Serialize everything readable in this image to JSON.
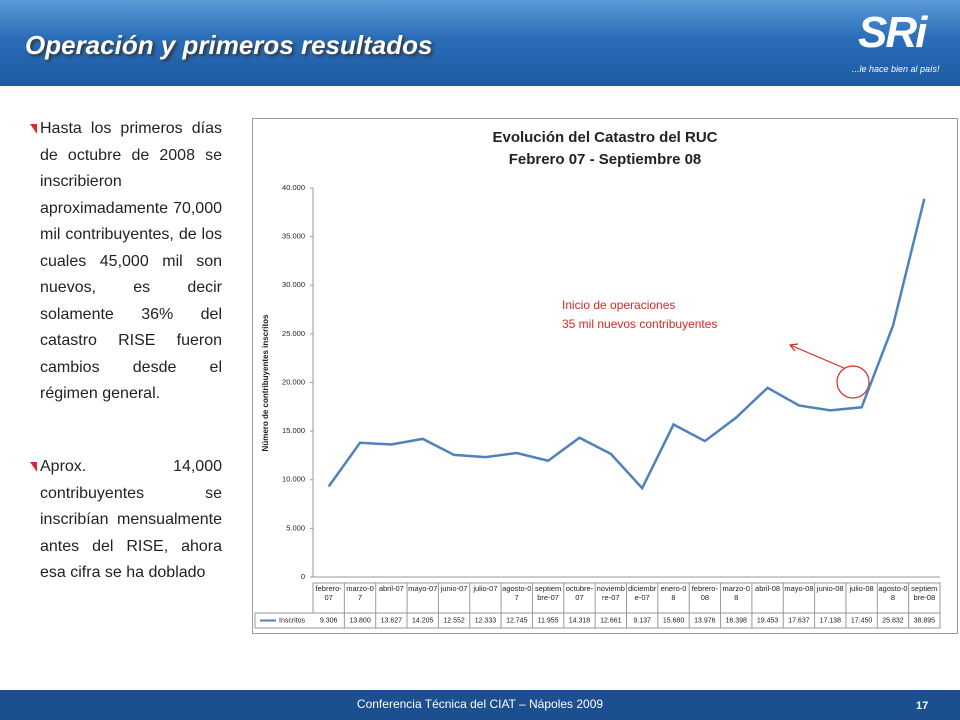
{
  "header": {
    "title": "Operación y primeros resultados",
    "logo": "SRi",
    "tagline": "...le hace bien al país!"
  },
  "bullets": [
    "Hasta los primeros días de octubre de 2008 se inscribieron aproximadamente 70,000 mil contribuyentes, de los cuales 45,000 mil son nuevos, es decir solamente 36% del catastro RISE fueron cambios desde el régimen general.",
    "Aprox. 14,000 contribuyentes se inscribían mensualmente antes del RISE, ahora esa cifra se ha doblado"
  ],
  "chart_data": {
    "type": "line",
    "title": "Evolución del Catastro del RUC",
    "subtitle": "Febrero 07 - Septiembre 08",
    "ylabel": "Número de contribuyentes inscritos",
    "categories": [
      "febrero-07",
      "marzo-07",
      "abril-07",
      "mayo-07",
      "junio-07",
      "julio-07",
      "agosto-07",
      "septiembre-07",
      "octubre-07",
      "noviembre-07",
      "diciembre-07",
      "enero-08",
      "febrero-08",
      "marzo-08",
      "abril-08",
      "mayo-08",
      "junio-08",
      "julio-08",
      "agosto-08",
      "septiembre-08"
    ],
    "series": [
      {
        "name": "Inscritos",
        "color": "#4f81bd",
        "values": [
          9306,
          13800,
          13627,
          14205,
          12552,
          12333,
          12745,
          11955,
          14318,
          12661,
          9137,
          15680,
          13976,
          16398,
          19453,
          17637,
          17138,
          17450,
          25832,
          38895
        ],
        "value_labels": [
          "9.306",
          "13.800",
          "13.627",
          "14.205",
          "12.552",
          "12.333",
          "12.745",
          "11.955",
          "14.318",
          "12.661",
          "9.137",
          "15.680",
          "13.976",
          "16.398",
          "19.453",
          "17.637",
          "17.138",
          "17.450",
          "25.832",
          "38.895"
        ]
      }
    ],
    "ylim": [
      0,
      40000
    ],
    "yticks": [
      0,
      {
        "value": 5000,
        "label": "5.000"
      },
      {
        "value": 10000,
        "label": "10.000"
      },
      {
        "value": 15000,
        "label": "15.000"
      },
      {
        "value": 20000,
        "label": "20.000"
      },
      {
        "value": 25000,
        "label": "25.000"
      },
      {
        "value": 30000,
        "label": "30.000"
      },
      {
        "value": 35000,
        "label": "35.000"
      },
      {
        "value": 40000,
        "label": "40.000"
      }
    ],
    "annotations": [
      "Inicio de operaciones",
      "35 mil nuevos contribuyentes"
    ]
  },
  "footer": {
    "text": "Conferencia Técnica del CIAT – Nápoles 2009",
    "page": "17"
  }
}
